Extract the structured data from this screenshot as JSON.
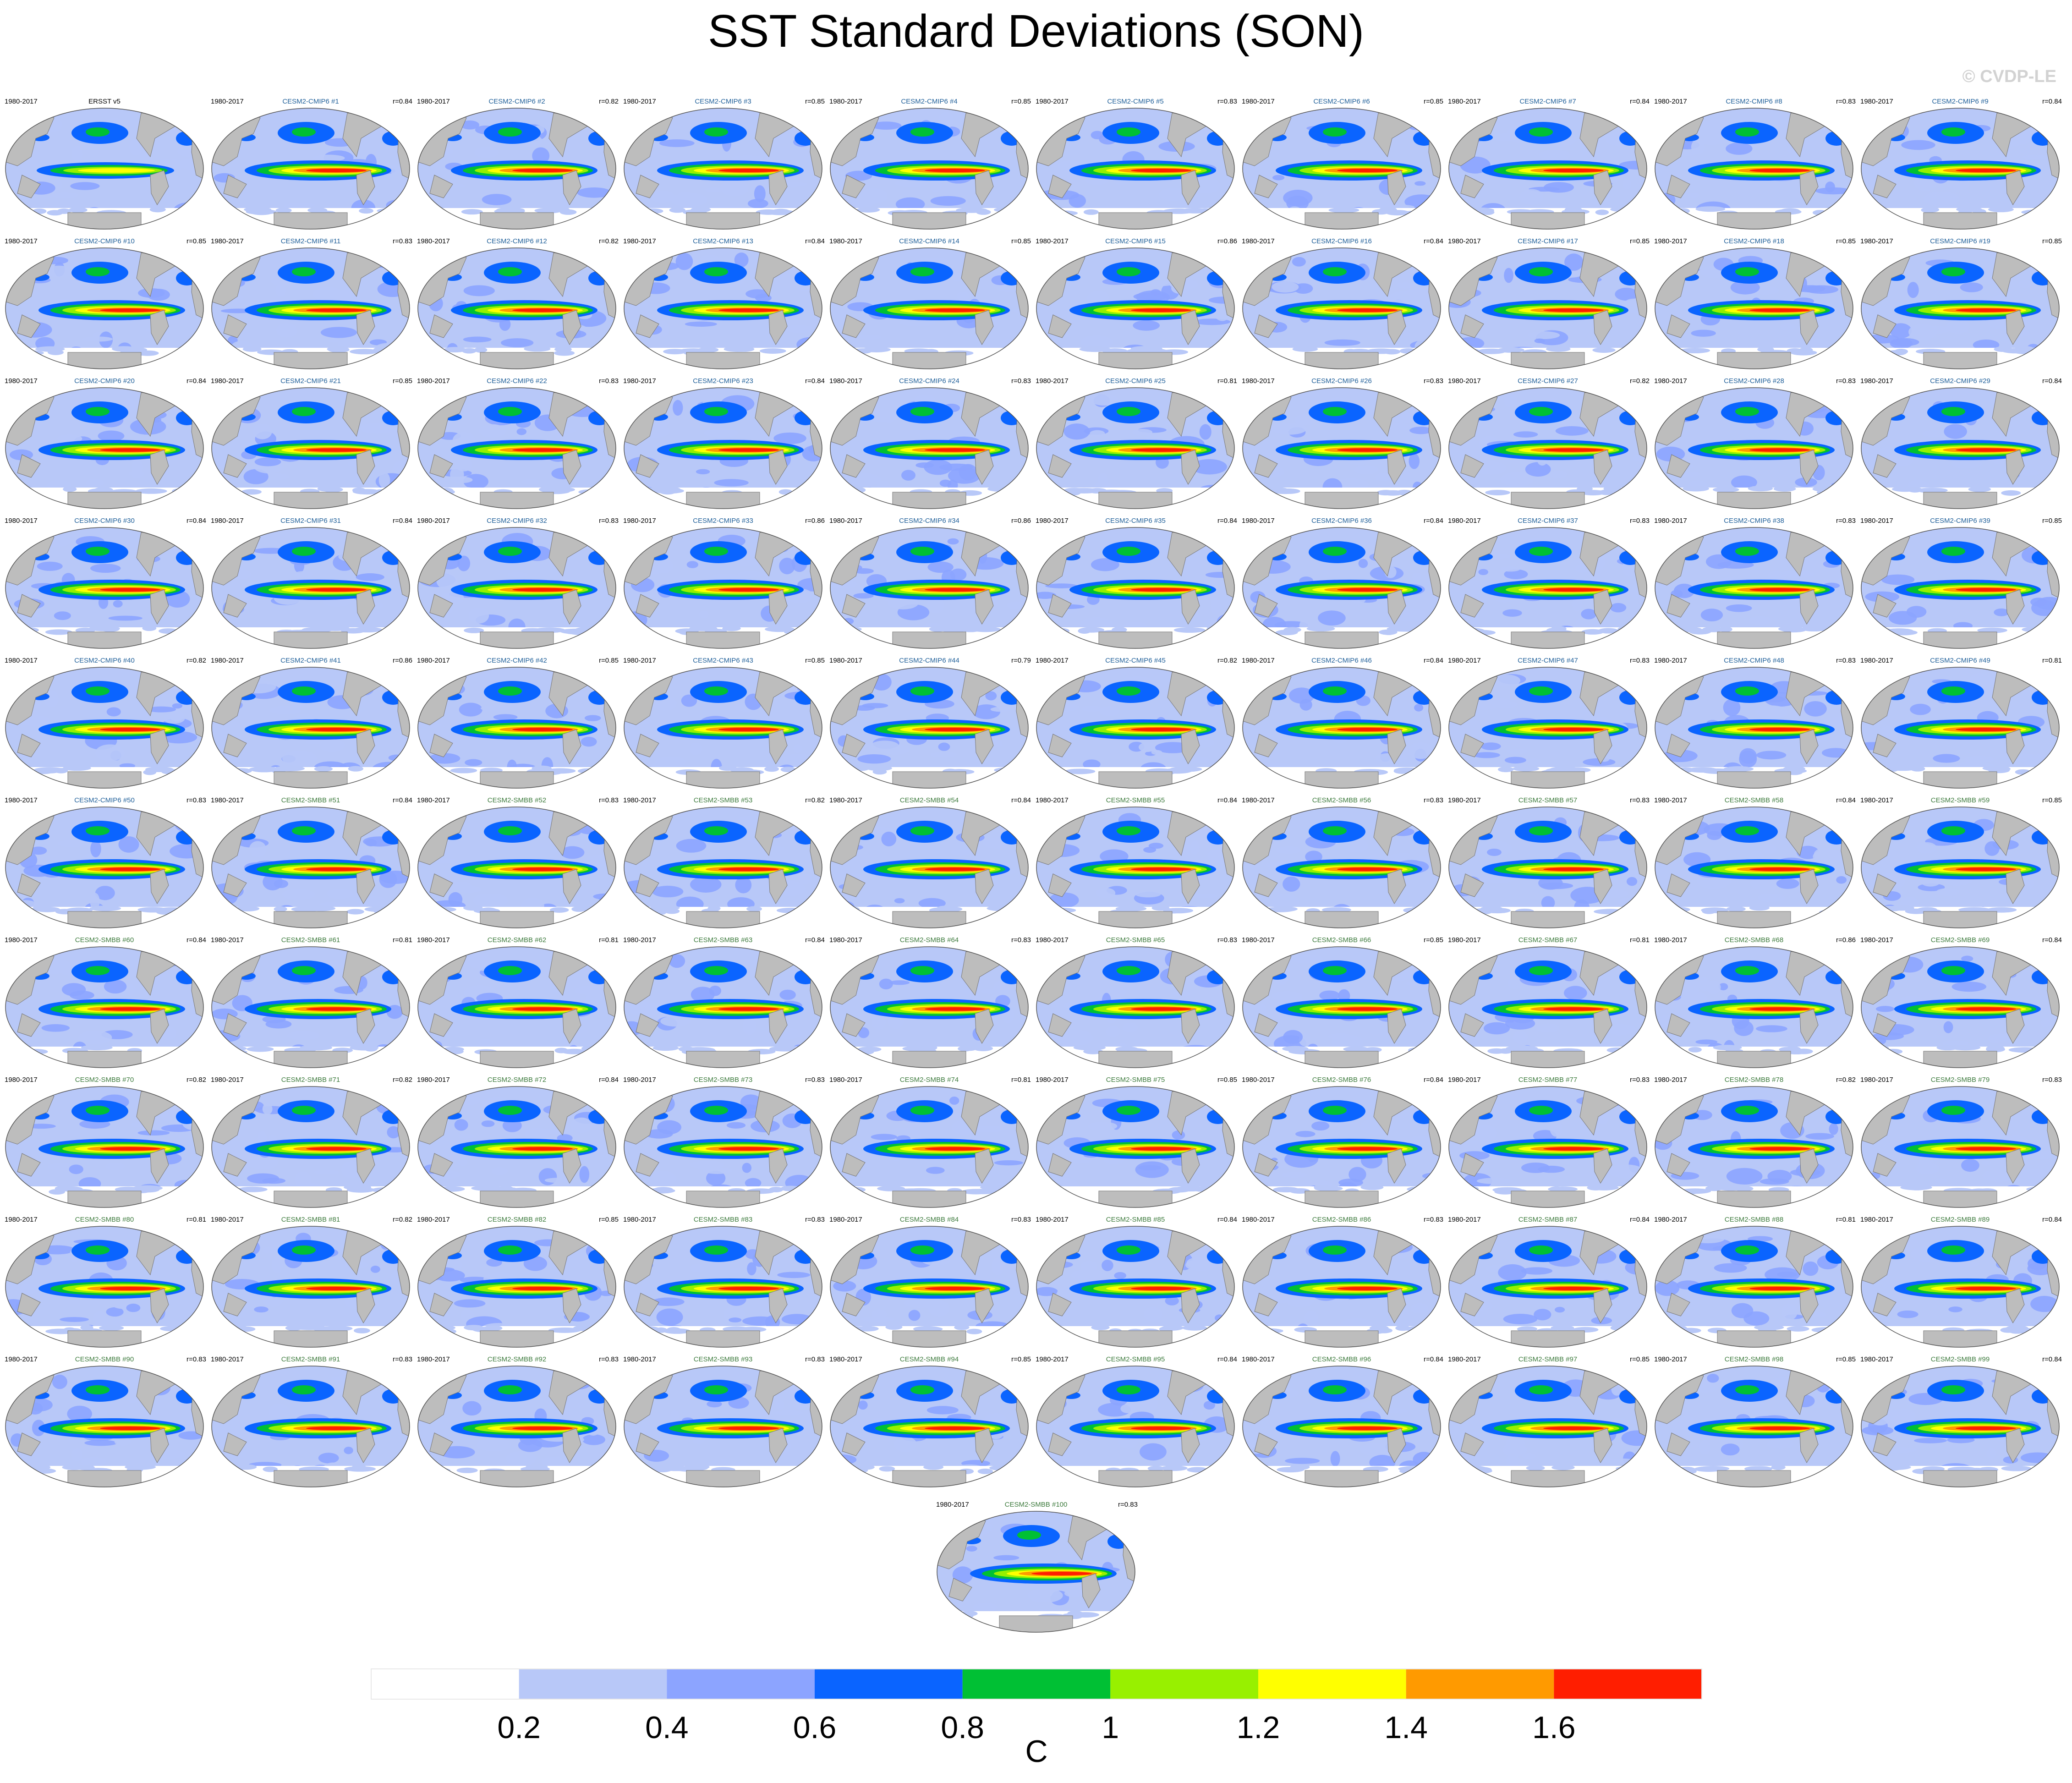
{
  "title": "SST Standard Deviations (SON)",
  "watermark": "© CVDP-LE",
  "period_label": "1980-2017",
  "chart_data": {
    "type": "heatmap",
    "title": "SST Standard Deviations (SON)",
    "variable": "SST standard deviation",
    "season": "SON",
    "period": "1980-2017",
    "units": "C",
    "colorbar": {
      "levels": [
        0.2,
        0.4,
        0.6,
        0.8,
        1,
        1.2,
        1.4,
        1.6
      ],
      "tick_labels": [
        "0.2",
        "0.4",
        "0.6",
        "0.8",
        "1",
        "1.2",
        "1.4",
        "1.6"
      ],
      "colors": [
        "#ffffff",
        "#b8c8f8",
        "#8ca4ff",
        "#0a64ff",
        "#00c034",
        "#98f000",
        "#ffff00",
        "#ff9a00",
        "#ff1e00"
      ]
    },
    "panels": [
      {
        "title": "ERSST v5",
        "group": "obs",
        "r": ""
      },
      {
        "title": "CESM2-CMIP6 #1",
        "group": "cmip6",
        "r": "r=0.84"
      },
      {
        "title": "CESM2-CMIP6 #2",
        "group": "cmip6",
        "r": "r=0.82"
      },
      {
        "title": "CESM2-CMIP6 #3",
        "group": "cmip6",
        "r": "r=0.85"
      },
      {
        "title": "CESM2-CMIP6 #4",
        "group": "cmip6",
        "r": "r=0.85"
      },
      {
        "title": "CESM2-CMIP6 #5",
        "group": "cmip6",
        "r": "r=0.83"
      },
      {
        "title": "CESM2-CMIP6 #6",
        "group": "cmip6",
        "r": "r=0.85"
      },
      {
        "title": "CESM2-CMIP6 #7",
        "group": "cmip6",
        "r": "r=0.84"
      },
      {
        "title": "CESM2-CMIP6 #8",
        "group": "cmip6",
        "r": "r=0.83"
      },
      {
        "title": "CESM2-CMIP6 #9",
        "group": "cmip6",
        "r": "r=0.84"
      },
      {
        "title": "CESM2-CMIP6 #10",
        "group": "cmip6",
        "r": "r=0.85"
      },
      {
        "title": "CESM2-CMIP6 #11",
        "group": "cmip6",
        "r": "r=0.83"
      },
      {
        "title": "CESM2-CMIP6 #12",
        "group": "cmip6",
        "r": "r=0.82"
      },
      {
        "title": "CESM2-CMIP6 #13",
        "group": "cmip6",
        "r": "r=0.84"
      },
      {
        "title": "CESM2-CMIP6 #14",
        "group": "cmip6",
        "r": "r=0.85"
      },
      {
        "title": "CESM2-CMIP6 #15",
        "group": "cmip6",
        "r": "r=0.86"
      },
      {
        "title": "CESM2-CMIP6 #16",
        "group": "cmip6",
        "r": "r=0.84"
      },
      {
        "title": "CESM2-CMIP6 #17",
        "group": "cmip6",
        "r": "r=0.85"
      },
      {
        "title": "CESM2-CMIP6 #18",
        "group": "cmip6",
        "r": "r=0.85"
      },
      {
        "title": "CESM2-CMIP6 #19",
        "group": "cmip6",
        "r": "r=0.85"
      },
      {
        "title": "CESM2-CMIP6 #20",
        "group": "cmip6",
        "r": "r=0.84"
      },
      {
        "title": "CESM2-CMIP6 #21",
        "group": "cmip6",
        "r": "r=0.85"
      },
      {
        "title": "CESM2-CMIP6 #22",
        "group": "cmip6",
        "r": "r=0.83"
      },
      {
        "title": "CESM2-CMIP6 #23",
        "group": "cmip6",
        "r": "r=0.84"
      },
      {
        "title": "CESM2-CMIP6 #24",
        "group": "cmip6",
        "r": "r=0.83"
      },
      {
        "title": "CESM2-CMIP6 #25",
        "group": "cmip6",
        "r": "r=0.81"
      },
      {
        "title": "CESM2-CMIP6 #26",
        "group": "cmip6",
        "r": "r=0.83"
      },
      {
        "title": "CESM2-CMIP6 #27",
        "group": "cmip6",
        "r": "r=0.82"
      },
      {
        "title": "CESM2-CMIP6 #28",
        "group": "cmip6",
        "r": "r=0.83"
      },
      {
        "title": "CESM2-CMIP6 #29",
        "group": "cmip6",
        "r": "r=0.84"
      },
      {
        "title": "CESM2-CMIP6 #30",
        "group": "cmip6",
        "r": "r=0.84"
      },
      {
        "title": "CESM2-CMIP6 #31",
        "group": "cmip6",
        "r": "r=0.84"
      },
      {
        "title": "CESM2-CMIP6 #32",
        "group": "cmip6",
        "r": "r=0.83"
      },
      {
        "title": "CESM2-CMIP6 #33",
        "group": "cmip6",
        "r": "r=0.86"
      },
      {
        "title": "CESM2-CMIP6 #34",
        "group": "cmip6",
        "r": "r=0.86"
      },
      {
        "title": "CESM2-CMIP6 #35",
        "group": "cmip6",
        "r": "r=0.84"
      },
      {
        "title": "CESM2-CMIP6 #36",
        "group": "cmip6",
        "r": "r=0.84"
      },
      {
        "title": "CESM2-CMIP6 #37",
        "group": "cmip6",
        "r": "r=0.83"
      },
      {
        "title": "CESM2-CMIP6 #38",
        "group": "cmip6",
        "r": "r=0.83"
      },
      {
        "title": "CESM2-CMIP6 #39",
        "group": "cmip6",
        "r": "r=0.85"
      },
      {
        "title": "CESM2-CMIP6 #40",
        "group": "cmip6",
        "r": "r=0.82"
      },
      {
        "title": "CESM2-CMIP6 #41",
        "group": "cmip6",
        "r": "r=0.86"
      },
      {
        "title": "CESM2-CMIP6 #42",
        "group": "cmip6",
        "r": "r=0.85"
      },
      {
        "title": "CESM2-CMIP6 #43",
        "group": "cmip6",
        "r": "r=0.85"
      },
      {
        "title": "CESM2-CMIP6 #44",
        "group": "cmip6",
        "r": "r=0.79"
      },
      {
        "title": "CESM2-CMIP6 #45",
        "group": "cmip6",
        "r": "r=0.82"
      },
      {
        "title": "CESM2-CMIP6 #46",
        "group": "cmip6",
        "r": "r=0.84"
      },
      {
        "title": "CESM2-CMIP6 #47",
        "group": "cmip6",
        "r": "r=0.83"
      },
      {
        "title": "CESM2-CMIP6 #48",
        "group": "cmip6",
        "r": "r=0.83"
      },
      {
        "title": "CESM2-CMIP6 #49",
        "group": "cmip6",
        "r": "r=0.81"
      },
      {
        "title": "CESM2-CMIP6 #50",
        "group": "cmip6",
        "r": "r=0.83"
      },
      {
        "title": "CESM2-SMBB #51",
        "group": "smbb",
        "r": "r=0.84"
      },
      {
        "title": "CESM2-SMBB #52",
        "group": "smbb",
        "r": "r=0.83"
      },
      {
        "title": "CESM2-SMBB #53",
        "group": "smbb",
        "r": "r=0.82"
      },
      {
        "title": "CESM2-SMBB #54",
        "group": "smbb",
        "r": "r=0.84"
      },
      {
        "title": "CESM2-SMBB #55",
        "group": "smbb",
        "r": "r=0.84"
      },
      {
        "title": "CESM2-SMBB #56",
        "group": "smbb",
        "r": "r=0.83"
      },
      {
        "title": "CESM2-SMBB #57",
        "group": "smbb",
        "r": "r=0.83"
      },
      {
        "title": "CESM2-SMBB #58",
        "group": "smbb",
        "r": "r=0.84"
      },
      {
        "title": "CESM2-SMBB #59",
        "group": "smbb",
        "r": "r=0.85"
      },
      {
        "title": "CESM2-SMBB #60",
        "group": "smbb",
        "r": "r=0.84"
      },
      {
        "title": "CESM2-SMBB #61",
        "group": "smbb",
        "r": "r=0.81"
      },
      {
        "title": "CESM2-SMBB #62",
        "group": "smbb",
        "r": "r=0.81"
      },
      {
        "title": "CESM2-SMBB #63",
        "group": "smbb",
        "r": "r=0.84"
      },
      {
        "title": "CESM2-SMBB #64",
        "group": "smbb",
        "r": "r=0.83"
      },
      {
        "title": "CESM2-SMBB #65",
        "group": "smbb",
        "r": "r=0.83"
      },
      {
        "title": "CESM2-SMBB #66",
        "group": "smbb",
        "r": "r=0.85"
      },
      {
        "title": "CESM2-SMBB #67",
        "group": "smbb",
        "r": "r=0.81"
      },
      {
        "title": "CESM2-SMBB #68",
        "group": "smbb",
        "r": "r=0.86"
      },
      {
        "title": "CESM2-SMBB #69",
        "group": "smbb",
        "r": "r=0.84"
      },
      {
        "title": "CESM2-SMBB #70",
        "group": "smbb",
        "r": "r=0.82"
      },
      {
        "title": "CESM2-SMBB #71",
        "group": "smbb",
        "r": "r=0.82"
      },
      {
        "title": "CESM2-SMBB #72",
        "group": "smbb",
        "r": "r=0.84"
      },
      {
        "title": "CESM2-SMBB #73",
        "group": "smbb",
        "r": "r=0.83"
      },
      {
        "title": "CESM2-SMBB #74",
        "group": "smbb",
        "r": "r=0.81"
      },
      {
        "title": "CESM2-SMBB #75",
        "group": "smbb",
        "r": "r=0.85"
      },
      {
        "title": "CESM2-SMBB #76",
        "group": "smbb",
        "r": "r=0.84"
      },
      {
        "title": "CESM2-SMBB #77",
        "group": "smbb",
        "r": "r=0.83"
      },
      {
        "title": "CESM2-SMBB #78",
        "group": "smbb",
        "r": "r=0.82"
      },
      {
        "title": "CESM2-SMBB #79",
        "group": "smbb",
        "r": "r=0.83"
      },
      {
        "title": "CESM2-SMBB #80",
        "group": "smbb",
        "r": "r=0.81"
      },
      {
        "title": "CESM2-SMBB #81",
        "group": "smbb",
        "r": "r=0.82"
      },
      {
        "title": "CESM2-SMBB #82",
        "group": "smbb",
        "r": "r=0.85"
      },
      {
        "title": "CESM2-SMBB #83",
        "group": "smbb",
        "r": "r=0.83"
      },
      {
        "title": "CESM2-SMBB #84",
        "group": "smbb",
        "r": "r=0.83"
      },
      {
        "title": "CESM2-SMBB #85",
        "group": "smbb",
        "r": "r=0.84"
      },
      {
        "title": "CESM2-SMBB #86",
        "group": "smbb",
        "r": "r=0.83"
      },
      {
        "title": "CESM2-SMBB #87",
        "group": "smbb",
        "r": "r=0.84"
      },
      {
        "title": "CESM2-SMBB #88",
        "group": "smbb",
        "r": "r=0.81"
      },
      {
        "title": "CESM2-SMBB #89",
        "group": "smbb",
        "r": "r=0.84"
      },
      {
        "title": "CESM2-SMBB #90",
        "group": "smbb",
        "r": "r=0.83"
      },
      {
        "title": "CESM2-SMBB #91",
        "group": "smbb",
        "r": "r=0.83"
      },
      {
        "title": "CESM2-SMBB #92",
        "group": "smbb",
        "r": "r=0.83"
      },
      {
        "title": "CESM2-SMBB #93",
        "group": "smbb",
        "r": "r=0.83"
      },
      {
        "title": "CESM2-SMBB #94",
        "group": "smbb",
        "r": "r=0.85"
      },
      {
        "title": "CESM2-SMBB #95",
        "group": "smbb",
        "r": "r=0.84"
      },
      {
        "title": "CESM2-SMBB #96",
        "group": "smbb",
        "r": "r=0.84"
      },
      {
        "title": "CESM2-SMBB #97",
        "group": "smbb",
        "r": "r=0.85"
      },
      {
        "title": "CESM2-SMBB #98",
        "group": "smbb",
        "r": "r=0.85"
      },
      {
        "title": "CESM2-SMBB #99",
        "group": "smbb",
        "r": "r=0.84"
      },
      {
        "title": "CESM2-SMBB #100",
        "group": "smbb",
        "r": "r=0.83"
      }
    ]
  }
}
